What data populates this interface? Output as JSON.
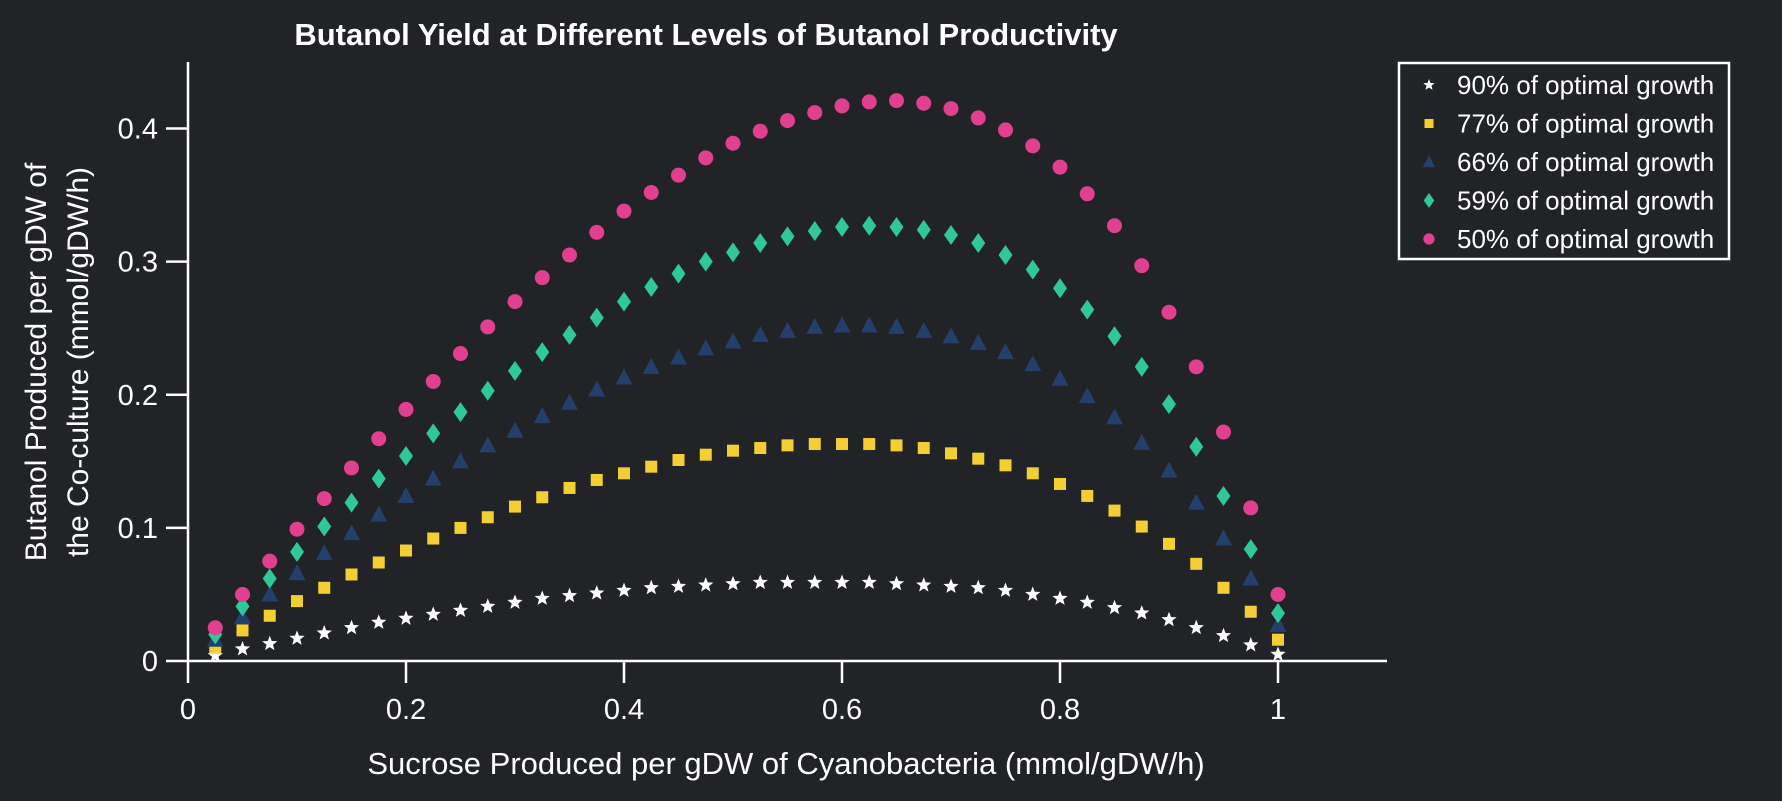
{
  "chart_data": {
    "type": "scatter",
    "title": "Butanol Yield at Different Levels of Butanol Productivity",
    "xlabel": "Sucrose Produced per gDW of Cyanobacteria (mmol/gDW/h)",
    "ylabel_lines": [
      "Butanol Produced per gDW of",
      "the Co-culture (mmol/gDW/h)"
    ],
    "xlim": [
      0,
      1.1
    ],
    "ylim": [
      0,
      0.45
    ],
    "xticks": [
      0,
      0.2,
      0.4,
      0.6,
      0.8,
      1
    ],
    "xtick_labels": [
      "0",
      "0.2",
      "0.4",
      "0.6",
      "0.8",
      "1"
    ],
    "yticks": [
      0,
      0.1,
      0.2,
      0.3,
      0.4
    ],
    "ytick_labels": [
      "0",
      "0.1",
      "0.2",
      "0.3",
      "0.4"
    ],
    "legend_position": "outside-top-right",
    "grid": false,
    "x": [
      0.025,
      0.05,
      0.075,
      0.1,
      0.125,
      0.15,
      0.175,
      0.2,
      0.225,
      0.25,
      0.275,
      0.3,
      0.325,
      0.35,
      0.375,
      0.4,
      0.425,
      0.45,
      0.475,
      0.5,
      0.525,
      0.55,
      0.575,
      0.6,
      0.625,
      0.65,
      0.675,
      0.7,
      0.725,
      0.75,
      0.775,
      0.8,
      0.825,
      0.85,
      0.875,
      0.9,
      0.925,
      0.95,
      0.975,
      1.0
    ],
    "series": [
      {
        "name": "90% of optimal growth",
        "marker": "star",
        "color": "#ffffff",
        "values": [
          0.004,
          0.009,
          0.013,
          0.017,
          0.021,
          0.025,
          0.029,
          0.032,
          0.035,
          0.038,
          0.041,
          0.044,
          0.047,
          0.049,
          0.051,
          0.053,
          0.055,
          0.056,
          0.057,
          0.058,
          0.059,
          0.059,
          0.059,
          0.059,
          0.059,
          0.058,
          0.057,
          0.056,
          0.055,
          0.053,
          0.05,
          0.047,
          0.044,
          0.04,
          0.036,
          0.031,
          0.025,
          0.019,
          0.012,
          0.005
        ]
      },
      {
        "name": "77% of optimal growth",
        "marker": "square",
        "color": "#f3cf34",
        "values": [
          0.01,
          0.023,
          0.034,
          0.045,
          0.055,
          0.065,
          0.074,
          0.083,
          0.092,
          0.1,
          0.108,
          0.116,
          0.123,
          0.13,
          0.136,
          0.141,
          0.146,
          0.151,
          0.155,
          0.158,
          0.16,
          0.162,
          0.163,
          0.163,
          0.163,
          0.162,
          0.16,
          0.156,
          0.152,
          0.147,
          0.141,
          0.133,
          0.124,
          0.113,
          0.101,
          0.088,
          0.073,
          0.055,
          0.037,
          0.016
        ]
      },
      {
        "name": "66% of optimal growth",
        "marker": "triangle",
        "color": "#243f6b",
        "values": [
          0.016,
          0.033,
          0.05,
          0.066,
          0.081,
          0.096,
          0.11,
          0.124,
          0.137,
          0.15,
          0.162,
          0.173,
          0.184,
          0.194,
          0.204,
          0.213,
          0.221,
          0.228,
          0.235,
          0.24,
          0.245,
          0.248,
          0.251,
          0.252,
          0.252,
          0.251,
          0.248,
          0.244,
          0.239,
          0.232,
          0.223,
          0.212,
          0.199,
          0.183,
          0.164,
          0.143,
          0.119,
          0.092,
          0.062,
          0.027
        ]
      },
      {
        "name": "59% of optimal growth",
        "marker": "diamond",
        "color": "#2fc898",
        "values": [
          0.02,
          0.041,
          0.062,
          0.082,
          0.101,
          0.119,
          0.137,
          0.154,
          0.171,
          0.187,
          0.203,
          0.218,
          0.232,
          0.245,
          0.258,
          0.27,
          0.281,
          0.291,
          0.3,
          0.307,
          0.314,
          0.319,
          0.323,
          0.326,
          0.327,
          0.326,
          0.324,
          0.32,
          0.314,
          0.305,
          0.294,
          0.28,
          0.264,
          0.244,
          0.221,
          0.193,
          0.161,
          0.124,
          0.084,
          0.036
        ]
      },
      {
        "name": "50% of optimal growth",
        "marker": "circle",
        "color": "#e13f8f",
        "values": [
          0.025,
          0.05,
          0.075,
          0.099,
          0.122,
          0.145,
          0.167,
          0.189,
          0.21,
          0.231,
          0.251,
          0.27,
          0.288,
          0.305,
          0.322,
          0.338,
          0.352,
          0.365,
          0.378,
          0.389,
          0.398,
          0.406,
          0.412,
          0.417,
          0.42,
          0.421,
          0.419,
          0.415,
          0.408,
          0.399,
          0.387,
          0.371,
          0.351,
          0.327,
          0.297,
          0.262,
          0.221,
          0.172,
          0.115,
          0.05
        ]
      }
    ]
  }
}
